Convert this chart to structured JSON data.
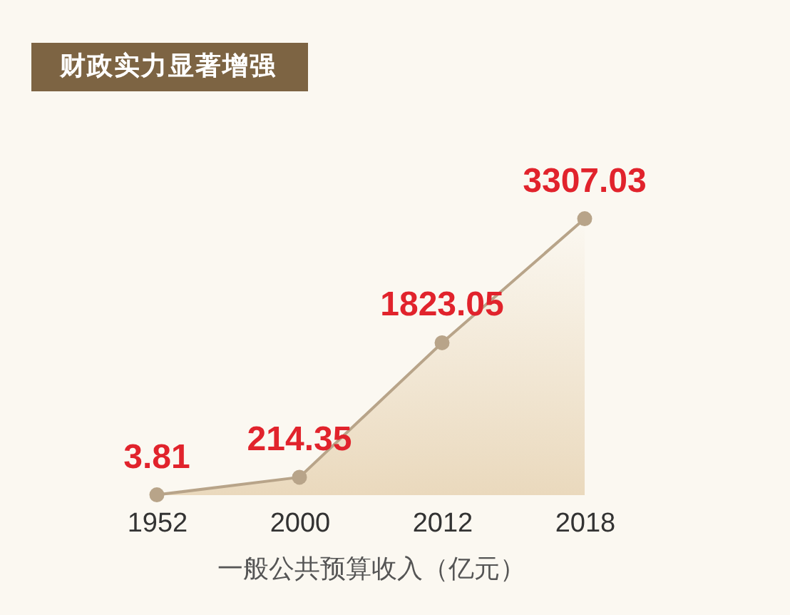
{
  "chart_data": {
    "type": "area",
    "title": "财政实力显著增强",
    "xlabel": "一般公共预算收入（亿元）",
    "categories": [
      "1952",
      "2000",
      "2012",
      "2018"
    ],
    "series": [
      {
        "color": "#b8a489",
        "values": [
          3.81,
          214.35,
          1823.05,
          3307.03
        ]
      }
    ],
    "data_labels": true,
    "marker": "circle"
  }
}
